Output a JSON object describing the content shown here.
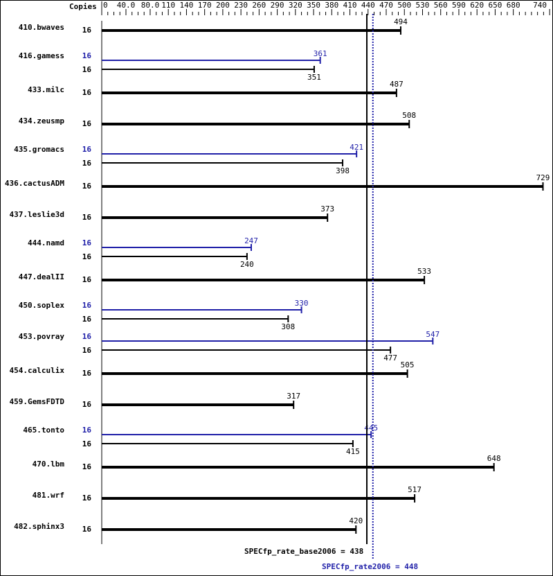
{
  "chart_data": {
    "type": "bar",
    "orientation": "horizontal",
    "axis_header": "Copies",
    "xlim": [
      0,
      740
    ],
    "x_tick_labels": [
      "0",
      "40.0",
      "80.0",
      "110",
      "140",
      "170",
      "200",
      "230",
      "260",
      "290",
      "320",
      "350",
      "380",
      "410",
      "440",
      "470",
      "500",
      "530",
      "560",
      "590",
      "620",
      "650",
      "680",
      "740"
    ],
    "x_tick_values": [
      0,
      40,
      80,
      110,
      140,
      170,
      200,
      230,
      260,
      290,
      320,
      350,
      380,
      410,
      440,
      470,
      500,
      530,
      560,
      590,
      620,
      650,
      680,
      740
    ],
    "colors": {
      "base": "#000000",
      "peak": "#1f1fa8"
    },
    "benchmarks": [
      {
        "name": "410.bwaves",
        "copies_base": "16",
        "base": 494
      },
      {
        "name": "416.gamess",
        "copies_peak": "16",
        "peak": 361,
        "copies_base": "16",
        "base": 351
      },
      {
        "name": "433.milc",
        "copies_base": "16",
        "base": 487
      },
      {
        "name": "434.zeusmp",
        "copies_base": "16",
        "base": 508
      },
      {
        "name": "435.gromacs",
        "copies_peak": "16",
        "peak": 421,
        "copies_base": "16",
        "base": 398
      },
      {
        "name": "436.cactusADM",
        "copies_base": "16",
        "base": 729
      },
      {
        "name": "437.leslie3d",
        "copies_base": "16",
        "base": 373
      },
      {
        "name": "444.namd",
        "copies_peak": "16",
        "peak": 247,
        "copies_base": "16",
        "base": 240
      },
      {
        "name": "447.dealII",
        "copies_base": "16",
        "base": 533
      },
      {
        "name": "450.soplex",
        "copies_peak": "16",
        "peak": 330,
        "copies_base": "16",
        "base": 308
      },
      {
        "name": "453.povray",
        "copies_peak": "16",
        "peak": 547,
        "copies_base": "16",
        "base": 477
      },
      {
        "name": "454.calculix",
        "copies_base": "16",
        "base": 505
      },
      {
        "name": "459.GemsFDTD",
        "copies_base": "16",
        "base": 317
      },
      {
        "name": "465.tonto",
        "copies_peak": "16",
        "peak": 445,
        "copies_base": "16",
        "base": 415
      },
      {
        "name": "470.lbm",
        "copies_base": "16",
        "base": 648
      },
      {
        "name": "481.wrf",
        "copies_base": "16",
        "base": 517
      },
      {
        "name": "482.sphinx3",
        "copies_base": "16",
        "base": 420
      }
    ],
    "summary": {
      "base_label": "SPECfp_rate_base2006 = 438",
      "base_value": 438,
      "peak_label": "SPECfp_rate2006 = 448",
      "peak_value": 448
    }
  }
}
